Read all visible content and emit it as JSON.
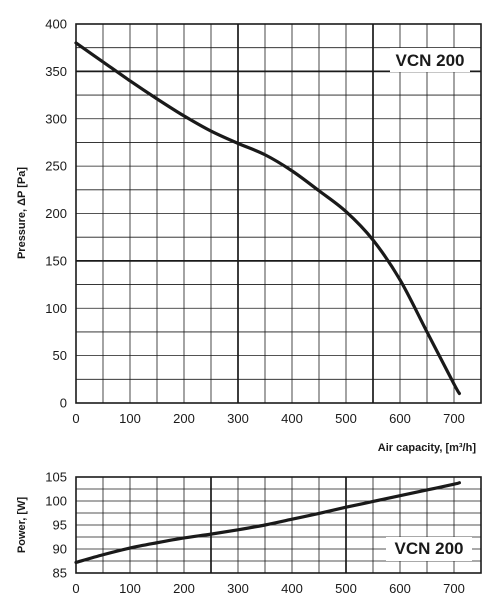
{
  "chart_data": [
    {
      "type": "line",
      "label": "VCN 200",
      "xlabel": "Air capacity, [m³/h]",
      "ylabel": "Pressure, ΔP [Pa]",
      "xlim": [
        0,
        750
      ],
      "ylim": [
        0,
        400
      ],
      "xticks": [
        0,
        100,
        200,
        300,
        400,
        500,
        600,
        700
      ],
      "yticks": [
        0,
        50,
        100,
        150,
        200,
        250,
        300,
        350,
        400
      ],
      "grid": true,
      "series": [
        {
          "x": [
            0,
            50,
            100,
            150,
            200,
            250,
            300,
            350,
            400,
            450,
            500,
            550,
            600,
            650,
            700,
            710
          ],
          "y": [
            380,
            360,
            340,
            321,
            303,
            287,
            274,
            262,
            245,
            224,
            202,
            172,
            130,
            75,
            20,
            10
          ]
        }
      ]
    },
    {
      "type": "line",
      "label": "VCN 200",
      "xlabel": "",
      "ylabel": "Power, [W]",
      "xlim": [
        0,
        750
      ],
      "ylim": [
        85,
        105
      ],
      "xticks": [
        0,
        100,
        200,
        300,
        400,
        500,
        600,
        700
      ],
      "yticks": [
        85,
        90,
        95,
        100,
        105
      ],
      "grid": true,
      "series": [
        {
          "x": [
            0,
            50,
            100,
            150,
            200,
            250,
            300,
            350,
            400,
            450,
            500,
            550,
            600,
            650,
            700,
            710
          ],
          "y": [
            87.2,
            88.8,
            90.2,
            91.3,
            92.3,
            93.1,
            94.0,
            95.0,
            96.2,
            97.4,
            98.7,
            99.9,
            101.1,
            102.3,
            103.5,
            103.8
          ]
        }
      ]
    }
  ]
}
